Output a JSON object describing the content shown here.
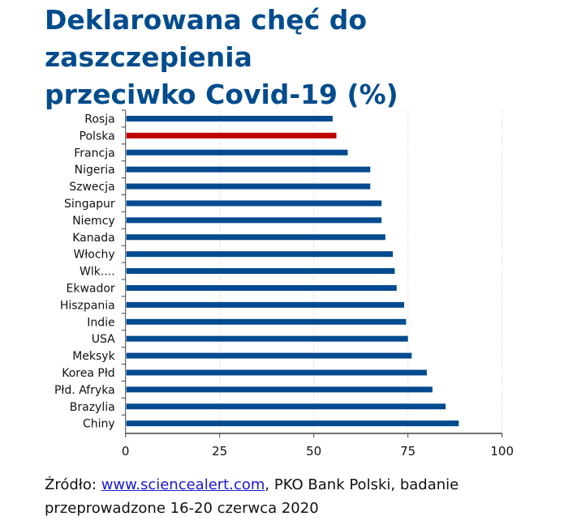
{
  "chart_data": {
    "type": "bar",
    "orientation": "horizontal",
    "title": "Deklarowana chęć do zaszczepienia przeciwko Covid-19 (%)",
    "title_lines": [
      "Deklarowana chęć do zaszczepienia",
      "przeciwko Covid-19 (%)"
    ],
    "categories": [
      "Rosja",
      "Polska",
      "Francja",
      "Nigeria",
      "Szwecja",
      "Singapur",
      "Niemcy",
      "Kanada",
      "Włochy",
      "Wlk....",
      "Ekwador",
      "Hiszpania",
      "Indie",
      "USA",
      "Meksyk",
      "Korea Płd",
      "Płd. Afryka",
      "Brazylia",
      "Chiny"
    ],
    "values": [
      55,
      56,
      59,
      65,
      65,
      68,
      68,
      69,
      71,
      71.5,
      72,
      74,
      74.5,
      75,
      76,
      80,
      81.5,
      85,
      88.5
    ],
    "highlight": "Polska",
    "colors": {
      "default": "#004a8f",
      "highlight": "#c00000",
      "title": "#004c8c"
    },
    "xlim": [
      0,
      100
    ],
    "xticks": [
      "0",
      "25",
      "50",
      "75",
      "100"
    ],
    "grid": "vertical dotted",
    "xlabel": "",
    "ylabel": ""
  },
  "source": {
    "prefix": "Źródło: ",
    "link": "www.sciencealert.com",
    "suffix": ", PKO Bank Polski, badanie",
    "line2": "przeprowadzone 16-20 czerwca 2020"
  }
}
